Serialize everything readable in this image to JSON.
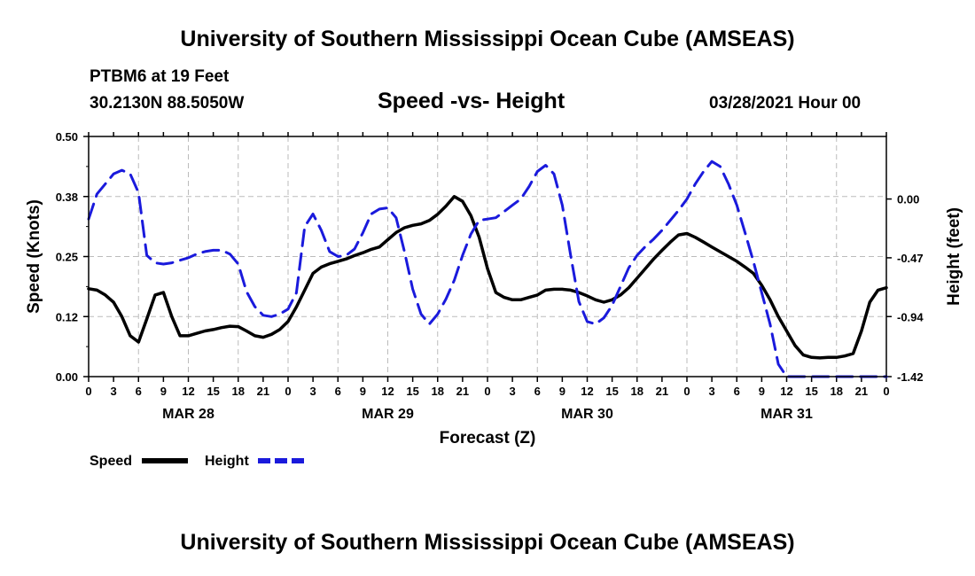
{
  "header": {
    "title": "University of Southern Mississippi Ocean Cube (AMSEAS)",
    "station": "PTBM6 at 19 Feet",
    "coords": "30.2130N  88.5050W",
    "subtitle": "Speed -vs- Height",
    "datetime": "03/28/2021 Hour 00"
  },
  "footer": {
    "title": "University of Southern Mississippi Ocean Cube (AMSEAS)"
  },
  "chart_data": {
    "type": "line",
    "xlabel": "Forecast (Z)",
    "ylabel_left": "Speed (Knots)",
    "ylabel_right": "Height (feet)",
    "xlim": [
      0,
      96
    ],
    "ylim_left": [
      0,
      0.5
    ],
    "ylim_right": [
      -1.42,
      0.5
    ],
    "grid": true,
    "x_tick_labels": [
      "0",
      "3",
      "6",
      "9",
      "12",
      "15",
      "18",
      "21",
      "0",
      "3",
      "6",
      "9",
      "12",
      "15",
      "18",
      "21",
      "0",
      "3",
      "6",
      "9",
      "12",
      "15",
      "18",
      "21",
      "0",
      "3",
      "6",
      "9",
      "12",
      "15",
      "18",
      "21",
      "0"
    ],
    "day_labels": [
      {
        "label": "MAR 28",
        "x": 12
      },
      {
        "label": "MAR 29",
        "x": 36
      },
      {
        "label": "MAR 30",
        "x": 60
      },
      {
        "label": "MAR 31",
        "x": 84
      }
    ],
    "left_ticks": [
      "0.00",
      "0.12",
      "0.25",
      "0.38",
      "0.50"
    ],
    "left_tick_values": [
      0,
      0.125,
      0.25,
      0.375,
      0.5
    ],
    "right_ticks": [
      "0.00",
      "-0.47",
      "-0.94",
      "-1.42"
    ],
    "right_tick_values": [
      0,
      -0.47,
      -0.94,
      -1.42
    ],
    "series": [
      {
        "name": "Speed",
        "axis": "left",
        "color": "#000000",
        "style": "solid",
        "x": [
          0,
          1,
          2,
          3,
          4,
          5,
          6,
          7,
          8,
          9,
          10,
          11,
          12,
          13,
          14,
          15,
          16,
          17,
          18,
          19,
          20,
          21,
          22,
          23,
          24,
          25,
          26,
          27,
          28,
          29,
          30,
          31,
          32,
          33,
          34,
          35,
          36,
          37,
          38,
          39,
          40,
          41,
          42,
          43,
          44,
          45,
          46,
          47,
          48,
          49,
          50,
          51,
          52,
          53,
          54,
          55,
          56,
          57,
          58,
          59,
          60,
          61,
          62,
          63,
          64,
          65,
          66,
          67,
          68,
          69,
          70,
          71,
          72,
          73,
          74,
          75,
          76,
          77,
          78,
          79,
          80,
          81,
          82,
          83,
          84,
          85,
          86,
          87,
          88,
          89,
          90,
          91,
          92,
          93,
          94,
          95,
          96
        ],
        "values": [
          0.183,
          0.18,
          0.17,
          0.155,
          0.125,
          0.085,
          0.072,
          0.12,
          0.17,
          0.175,
          0.125,
          0.085,
          0.085,
          0.09,
          0.095,
          0.098,
          0.102,
          0.105,
          0.104,
          0.095,
          0.085,
          0.082,
          0.088,
          0.098,
          0.115,
          0.145,
          0.18,
          0.215,
          0.228,
          0.235,
          0.24,
          0.245,
          0.252,
          0.258,
          0.265,
          0.27,
          0.285,
          0.3,
          0.31,
          0.315,
          0.318,
          0.325,
          0.338,
          0.355,
          0.375,
          0.365,
          0.335,
          0.29,
          0.225,
          0.175,
          0.165,
          0.16,
          0.16,
          0.165,
          0.17,
          0.18,
          0.182,
          0.182,
          0.18,
          0.175,
          0.168,
          0.16,
          0.155,
          0.16,
          0.17,
          0.185,
          0.205,
          0.225,
          0.245,
          0.263,
          0.28,
          0.295,
          0.298,
          0.29,
          0.28,
          0.27,
          0.26,
          0.25,
          0.24,
          0.228,
          0.215,
          0.19,
          0.16,
          0.125,
          0.095,
          0.065,
          0.045,
          0.04,
          0.039,
          0.04,
          0.04,
          0.043,
          0.048,
          0.095,
          0.155,
          0.18,
          0.185
        ]
      },
      {
        "name": "Height",
        "axis": "right",
        "color": "#1a1adc",
        "style": "dashed",
        "x": [
          0,
          1,
          2,
          3,
          4,
          5,
          6,
          7,
          8,
          9,
          10,
          11,
          12,
          13,
          14,
          15,
          16,
          17,
          18,
          19,
          20,
          21,
          22,
          23,
          24,
          25,
          26,
          27,
          28,
          29,
          30,
          31,
          32,
          33,
          34,
          35,
          36,
          37,
          38,
          39,
          40,
          41,
          42,
          43,
          44,
          45,
          46,
          47,
          48,
          49,
          50,
          51,
          52,
          53,
          54,
          55,
          56,
          57,
          58,
          59,
          60,
          61,
          62,
          63,
          64,
          65,
          66,
          67,
          68,
          69,
          70,
          71,
          72,
          73,
          74,
          75,
          76,
          77,
          78,
          79,
          80,
          81,
          82,
          83,
          84,
          85,
          86,
          87,
          88,
          89,
          90,
          91,
          92,
          93,
          94,
          95,
          96
        ],
        "values": [
          -0.16,
          0.04,
          0.12,
          0.2,
          0.23,
          0.2,
          0.05,
          -0.45,
          -0.51,
          -0.52,
          -0.51,
          -0.49,
          -0.47,
          -0.44,
          -0.42,
          -0.41,
          -0.41,
          -0.44,
          -0.52,
          -0.74,
          -0.86,
          -0.93,
          -0.94,
          -0.92,
          -0.88,
          -0.75,
          -0.22,
          -0.12,
          -0.25,
          -0.42,
          -0.46,
          -0.45,
          -0.4,
          -0.27,
          -0.12,
          -0.08,
          -0.07,
          -0.15,
          -0.42,
          -0.72,
          -0.92,
          -1.0,
          -0.92,
          -0.8,
          -0.65,
          -0.45,
          -0.28,
          -0.17,
          -0.16,
          -0.15,
          -0.1,
          -0.05,
          0.0,
          0.1,
          0.22,
          0.27,
          0.2,
          -0.05,
          -0.45,
          -0.82,
          -0.98,
          -1.0,
          -0.95,
          -0.85,
          -0.7,
          -0.55,
          -0.45,
          -0.38,
          -0.32,
          -0.25,
          -0.17,
          -0.09,
          0.0,
          0.12,
          0.22,
          0.3,
          0.26,
          0.12,
          -0.05,
          -0.27,
          -0.5,
          -0.75,
          -1.0,
          -1.32,
          -1.48,
          -1.42,
          -1.42,
          -1.42,
          -1.42,
          -1.42,
          -1.42,
          -1.42,
          -1.42,
          -1.42,
          -1.42,
          -1.42,
          -1.42
        ]
      }
    ],
    "legend": [
      {
        "label": "Speed",
        "color": "#000000",
        "style": "solid"
      },
      {
        "label": "Height",
        "color": "#1a1adc",
        "style": "dashed"
      }
    ]
  }
}
